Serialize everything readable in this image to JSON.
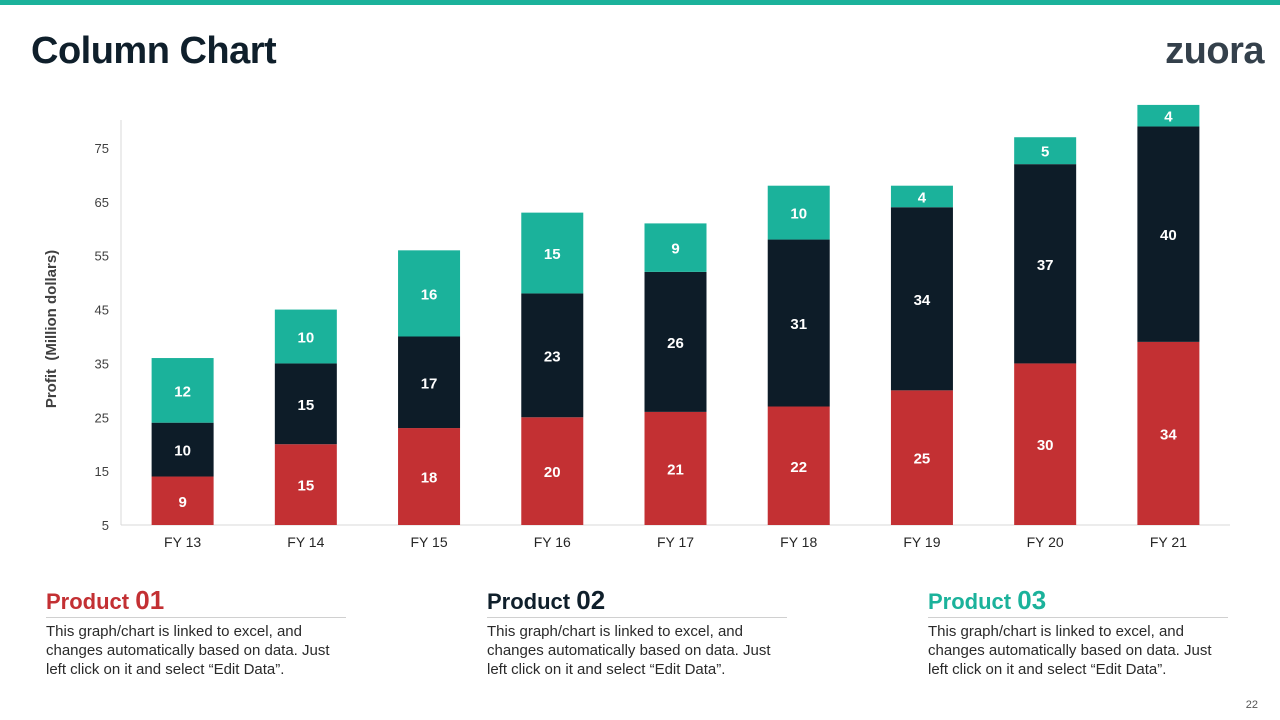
{
  "slide": {
    "title": "Column Chart",
    "logo": "zuora",
    "page_number": "22"
  },
  "colors": {
    "product01": "#c33033",
    "product02": "#0d1c28",
    "product03": "#1bb29b",
    "text_dark": "#0f1f2b"
  },
  "chart_data": {
    "type": "bar",
    "stacked": true,
    "categories": [
      "FY 13",
      "FY 14",
      "FY 15",
      "FY 16",
      "FY 17",
      "FY 18",
      "FY 19",
      "FY 20",
      "FY 21"
    ],
    "series": [
      {
        "name": "Product 01",
        "color": "#c33033",
        "values": [
          9,
          15,
          18,
          20,
          21,
          22,
          25,
          30,
          34
        ]
      },
      {
        "name": "Product 02",
        "color": "#0d1c28",
        "values": [
          10,
          15,
          17,
          23,
          26,
          31,
          34,
          37,
          40
        ]
      },
      {
        "name": "Product 03",
        "color": "#1bb29b",
        "values": [
          12,
          10,
          16,
          15,
          9,
          10,
          4,
          5,
          4
        ]
      }
    ],
    "title": "",
    "xlabel": "",
    "ylabel": "Profit  (Million dollars)",
    "yticks": [
      5,
      15,
      25,
      35,
      45,
      55,
      65,
      75
    ],
    "ylim": [
      5,
      78
    ],
    "grid": false,
    "data_labels": true
  },
  "products": [
    {
      "label": "Product",
      "number": "01",
      "color": "#c33033",
      "desc": "This graph/chart is linked to excel, and changes automatically based on data. Just left click on it and select “Edit Data”."
    },
    {
      "label": "Product",
      "number": "02",
      "color": "#0f1f2b",
      "desc": "This graph/chart is linked to excel, and changes automatically based on data. Just left click on it and select “Edit Data”."
    },
    {
      "label": "Product",
      "number": "03",
      "color": "#1bb29b",
      "desc": "This graph/chart is linked to excel, and changes automatically based on data. Just left click on it and select “Edit Data”."
    }
  ]
}
